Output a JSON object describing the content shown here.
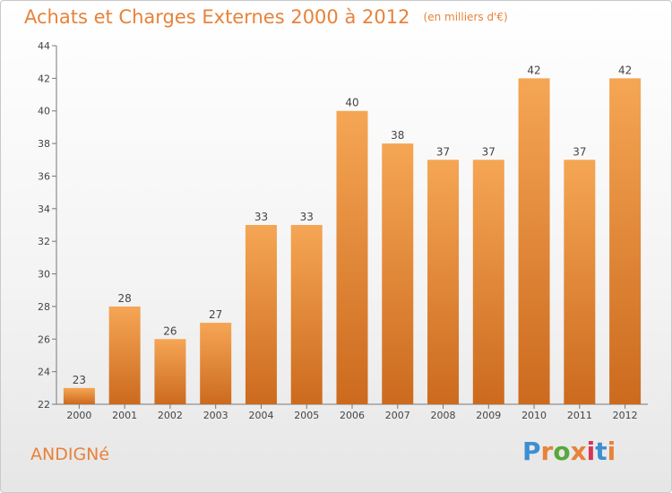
{
  "header": {
    "title": "Achats et Charges Externes 2000 à 2012",
    "subtitle": "(en milliers d'€)"
  },
  "footer": {
    "place": "ANDIGNé",
    "logo_text": "Proxiti",
    "logo_colors": [
      "#3e8fd1",
      "#e8823a",
      "#58a83c",
      "#e8823a",
      "#d6365a",
      "#3e8fd1",
      "#e8823a"
    ]
  },
  "chart_data": {
    "type": "bar",
    "categories": [
      "2000",
      "2001",
      "2002",
      "2003",
      "2004",
      "2005",
      "2006",
      "2007",
      "2008",
      "2009",
      "2010",
      "2011",
      "2012"
    ],
    "values": [
      23,
      28,
      26,
      27,
      33,
      33,
      40,
      38,
      37,
      37,
      42,
      37,
      42
    ],
    "ylim": [
      22,
      44
    ],
    "yticks": [
      22,
      24,
      26,
      28,
      30,
      32,
      34,
      36,
      38,
      40,
      42,
      44
    ],
    "grid": false,
    "bar_color_top": "#f5a654",
    "bar_color_bottom": "#cc6a1e"
  }
}
